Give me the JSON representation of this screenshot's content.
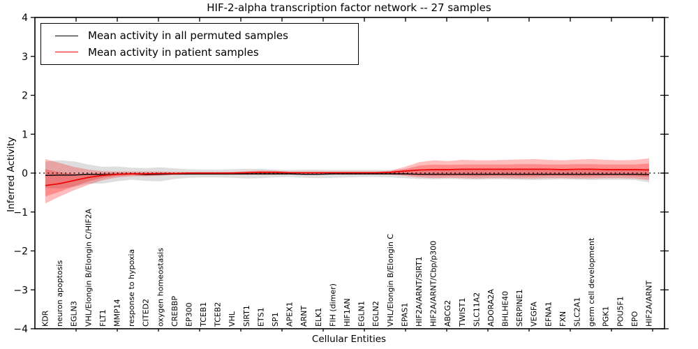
{
  "title": "HIF-2-alpha transcription factor network -- 27 samples",
  "axes": {
    "ylabel": "Inferred Activity",
    "xlabel": "Cellular Entities",
    "ytick_values": [
      4,
      3,
      2,
      1,
      0,
      -1,
      -2,
      -3,
      -4
    ],
    "ytick_labels": [
      "4",
      "3",
      "2",
      "1",
      "0",
      "−1",
      "−2",
      "−3",
      "−4"
    ]
  },
  "legend": [
    {
      "label": "Mean activity in all permuted samples",
      "color": "#000000"
    },
    {
      "label": "Mean activity in patient samples",
      "color": "#ff0000"
    }
  ],
  "colors": {
    "permuted_line": "#000000",
    "patient_line": "#f00000",
    "permuted_band": "rgba(0,0,0,0.13)",
    "patient_band": "rgba(255,0,0,0.26)",
    "zero_line": "#000000",
    "spine": "#000000"
  },
  "chart_data": {
    "type": "line",
    "title": "HIF-2-alpha transcription factor network -- 27 samples",
    "xlabel": "Cellular Entities",
    "ylabel": "Inferred Activity",
    "ylim": [
      -4,
      4
    ],
    "grid": false,
    "legend_position": "upper left",
    "categories": [
      "KDR",
      "neuron apoptosis",
      "EGLN3",
      "VHL/Elongin B/Elongin C/HIF2A",
      "FLT1",
      "MMP14",
      "response to hypoxia",
      "CITED2",
      "oxygen homeostasis",
      "CREBBP",
      "EP300",
      "TCEB1",
      "TCEB2",
      "VHL",
      "SIRT1",
      "ETS1",
      "SP1",
      "APEX1",
      "ARNT",
      "ELK1",
      "FIH (dimer)",
      "HIF1AN",
      "EGLN1",
      "EGLN2",
      "VHL/Elongin B/Elongin C",
      "EPAS1",
      "HIF2A/ARNT/SIRT1",
      "HIF2A/ARNT/Cbp/p300",
      "ABCG2",
      "TWIST1",
      "SLC11A2",
      "ADORA2A",
      "BHLHE40",
      "SERPINE1",
      "VEGFA",
      "EFNA1",
      "FXN",
      "SLC2A1",
      "germ cell development",
      "PGK1",
      "POU5F1",
      "EPO",
      "HIF2A/ARNT"
    ],
    "series": [
      {
        "name": "Mean activity in all permuted samples",
        "values": [
          -0.06,
          -0.05,
          -0.05,
          -0.03,
          -0.04,
          -0.03,
          -0.02,
          -0.04,
          -0.03,
          -0.02,
          -0.02,
          -0.02,
          -0.02,
          -0.02,
          -0.02,
          -0.02,
          -0.02,
          -0.02,
          -0.03,
          -0.03,
          -0.02,
          -0.02,
          -0.02,
          -0.02,
          -0.02,
          -0.02,
          -0.03,
          -0.03,
          -0.03,
          -0.03,
          -0.03,
          -0.03,
          -0.03,
          -0.03,
          -0.03,
          -0.03,
          -0.03,
          -0.03,
          -0.03,
          -0.03,
          -0.03,
          -0.03,
          -0.04
        ]
      },
      {
        "name": "Mean activity in patient samples",
        "values": [
          -0.32,
          -0.27,
          -0.19,
          -0.11,
          -0.06,
          -0.03,
          -0.02,
          -0.02,
          -0.01,
          -0.01,
          0.0,
          0.0,
          0.0,
          0.0,
          0.01,
          0.02,
          0.02,
          0.01,
          0.01,
          0.01,
          0.01,
          0.01,
          0.01,
          0.01,
          0.02,
          0.05,
          0.08,
          0.09,
          0.09,
          0.1,
          0.1,
          0.1,
          0.1,
          0.1,
          0.1,
          0.1,
          0.09,
          0.1,
          0.1,
          0.09,
          0.09,
          0.09,
          0.08
        ]
      }
    ],
    "bands": {
      "permuted_upper": [
        0.3,
        0.33,
        0.3,
        0.22,
        0.16,
        0.17,
        0.14,
        0.13,
        0.15,
        0.12,
        0.1,
        0.09,
        0.09,
        0.1,
        0.11,
        0.11,
        0.09,
        0.08,
        0.09,
        0.09,
        0.08,
        0.08,
        0.08,
        0.08,
        0.08,
        0.09,
        0.1,
        0.1,
        0.1,
        0.1,
        0.11,
        0.1,
        0.1,
        0.11,
        0.12,
        0.11,
        0.1,
        0.11,
        0.12,
        0.11,
        0.1,
        0.1,
        0.12
      ],
      "permuted_lower": [
        -0.38,
        -0.4,
        -0.35,
        -0.27,
        -0.27,
        -0.21,
        -0.17,
        -0.2,
        -0.21,
        -0.15,
        -0.12,
        -0.11,
        -0.11,
        -0.12,
        -0.14,
        -0.13,
        -0.11,
        -0.1,
        -0.12,
        -0.13,
        -0.12,
        -0.11,
        -0.1,
        -0.1,
        -0.11,
        -0.13,
        -0.15,
        -0.16,
        -0.15,
        -0.16,
        -0.17,
        -0.16,
        -0.16,
        -0.17,
        -0.18,
        -0.17,
        -0.16,
        -0.17,
        -0.18,
        -0.17,
        -0.17,
        -0.18,
        -0.24
      ],
      "patient_outer_upper": [
        0.36,
        0.26,
        0.16,
        0.09,
        0.05,
        0.04,
        0.04,
        0.04,
        0.04,
        0.03,
        0.03,
        0.03,
        0.03,
        0.03,
        0.05,
        0.07,
        0.06,
        0.04,
        0.04,
        0.04,
        0.04,
        0.04,
        0.04,
        0.04,
        0.06,
        0.16,
        0.28,
        0.33,
        0.31,
        0.34,
        0.33,
        0.33,
        0.34,
        0.35,
        0.36,
        0.34,
        0.33,
        0.35,
        0.36,
        0.34,
        0.33,
        0.34,
        0.38
      ],
      "patient_outer_lower": [
        -0.78,
        -0.6,
        -0.44,
        -0.3,
        -0.18,
        -0.11,
        -0.08,
        -0.08,
        -0.07,
        -0.05,
        -0.04,
        -0.04,
        -0.04,
        -0.04,
        -0.04,
        -0.04,
        -0.04,
        -0.03,
        -0.03,
        -0.03,
        -0.03,
        -0.03,
        -0.03,
        -0.03,
        -0.04,
        -0.07,
        -0.11,
        -0.13,
        -0.12,
        -0.13,
        -0.14,
        -0.13,
        -0.13,
        -0.14,
        -0.14,
        -0.13,
        -0.13,
        -0.14,
        -0.14,
        -0.13,
        -0.13,
        -0.14,
        -0.18
      ],
      "patient_inner_upper": [
        0.1,
        0.02,
        -0.02,
        -0.02,
        0.0,
        0.01,
        0.01,
        0.01,
        0.01,
        0.01,
        0.01,
        0.01,
        0.01,
        0.02,
        0.03,
        0.04,
        0.04,
        0.02,
        0.02,
        0.02,
        0.02,
        0.02,
        0.02,
        0.02,
        0.04,
        0.1,
        0.19,
        0.22,
        0.21,
        0.22,
        0.22,
        0.22,
        0.22,
        0.23,
        0.23,
        0.22,
        0.22,
        0.23,
        0.23,
        0.22,
        0.22,
        0.22,
        0.25
      ],
      "patient_inner_lower": [
        -0.6,
        -0.48,
        -0.34,
        -0.21,
        -0.12,
        -0.07,
        -0.05,
        -0.05,
        -0.04,
        -0.03,
        -0.02,
        -0.02,
        -0.02,
        -0.02,
        -0.02,
        -0.02,
        -0.02,
        -0.02,
        -0.02,
        -0.02,
        -0.02,
        -0.02,
        -0.02,
        -0.02,
        -0.02,
        -0.04,
        -0.06,
        -0.07,
        -0.07,
        -0.07,
        -0.08,
        -0.07,
        -0.07,
        -0.08,
        -0.08,
        -0.07,
        -0.07,
        -0.08,
        -0.08,
        -0.07,
        -0.07,
        -0.08,
        -0.1
      ]
    },
    "zero_reference_line": 0
  }
}
